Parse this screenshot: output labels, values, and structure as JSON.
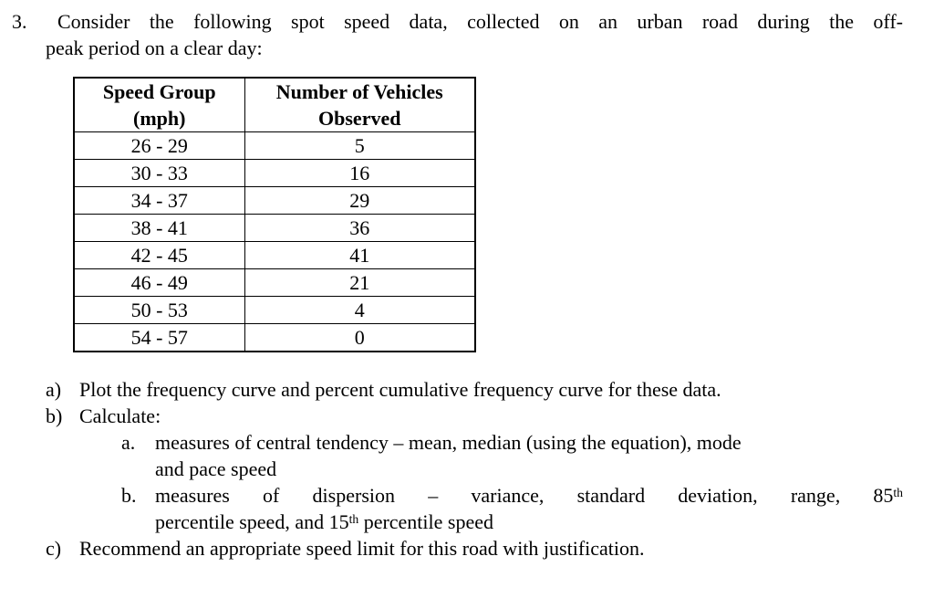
{
  "problem": {
    "number": "3.",
    "intro_line1": "Consider the following spot speed data, collected on an urban road during the off-",
    "intro_line2": "peak period on a clear day:"
  },
  "table": {
    "header": {
      "col1_line1": "Speed Group",
      "col1_line2": "(mph)",
      "col2_line1": "Number of Vehicles",
      "col2_line2": "Observed"
    },
    "rows": [
      {
        "speed_group": "26 - 29",
        "vehicles": "5"
      },
      {
        "speed_group": "30 - 33",
        "vehicles": "16"
      },
      {
        "speed_group": "34 - 37",
        "vehicles": "29"
      },
      {
        "speed_group": "38 - 41",
        "vehicles": "36"
      },
      {
        "speed_group": "42 - 45",
        "vehicles": "41"
      },
      {
        "speed_group": "46 - 49",
        "vehicles": "21"
      },
      {
        "speed_group": "50 - 53",
        "vehicles": "4"
      },
      {
        "speed_group": "54 - 57",
        "vehicles": "0"
      }
    ]
  },
  "questions": {
    "a": {
      "label": "a)",
      "text": "Plot the frequency curve and percent cumulative frequency curve for these data."
    },
    "b": {
      "label": "b)",
      "text": "Calculate:",
      "sub_a": {
        "label": "a.",
        "line1": "measures of central tendency – mean, median (using the equation), mode",
        "line2": "and pace speed"
      },
      "sub_b": {
        "label": "b.",
        "line1_text": "measures of dispersion – variance, standard deviation, range, 85",
        "line1_sup": "th",
        "line2_pre": "percentile speed, and 15",
        "line2_sup": "th",
        "line2_post": " percentile speed"
      }
    },
    "c": {
      "label": "c)",
      "text": "Recommend an appropriate speed limit for this road with justification."
    }
  }
}
